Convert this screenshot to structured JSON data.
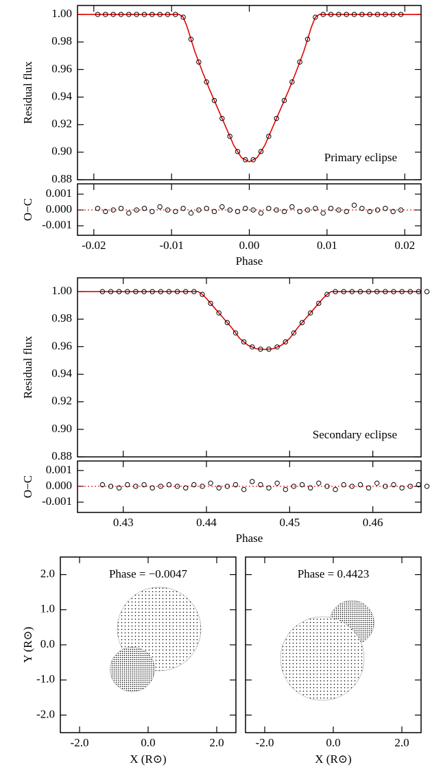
{
  "chart_data": [
    {
      "type": "light-curve",
      "ylabel": "Residual flux",
      "annotation": "Primary eclipse",
      "xlim": [
        -0.0221,
        0.0221
      ],
      "ylim": [
        0.88,
        1.0065
      ],
      "yticks": [
        {
          "value": 1,
          "label": "1.00"
        },
        0.98,
        0.96,
        0.94,
        0.92,
        {
          "value": 0.9,
          "label": "0.90"
        },
        0.88
      ],
      "x": [
        -0.0195,
        -0.0185,
        -0.0175,
        -0.0165,
        -0.0155,
        -0.0145,
        -0.0135,
        -0.0125,
        -0.0115,
        -0.0105,
        -0.0095,
        -0.0085,
        -0.0075,
        -0.0065,
        -0.0055,
        -0.0045,
        -0.0035,
        -0.0025,
        -0.0015,
        -0.0005,
        0.0005,
        0.0015,
        0.0025,
        0.0035,
        0.0045,
        0.0055,
        0.0065,
        0.0075,
        0.0085,
        0.0095,
        0.0105,
        0.0115,
        0.0125,
        0.0135,
        0.0145,
        0.0155,
        0.0165,
        0.0175,
        0.0185,
        0.0195
      ],
      "values": [
        1,
        1,
        1,
        1,
        1,
        1,
        1,
        1,
        1,
        1,
        1,
        0.998,
        0.982,
        0.9655,
        0.951,
        0.9375,
        0.9245,
        0.9115,
        0.9005,
        0.8945,
        0.8945,
        0.9005,
        0.9115,
        0.9245,
        0.9375,
        0.951,
        0.9655,
        0.982,
        0.998,
        1,
        1,
        1,
        1,
        1,
        1,
        1,
        1,
        1,
        1,
        1
      ],
      "color": "#000000",
      "model": {
        "color": "#e00000",
        "x": [
          -0.0221,
          -0.009,
          -0.0085,
          -0.008,
          -0.0075,
          -0.007,
          -0.006,
          -0.005,
          -0.004,
          -0.003,
          -0.002,
          -0.001,
          0,
          0.001,
          0.002,
          0.003,
          0.004,
          0.005,
          0.006,
          0.007,
          0.0075,
          0.008,
          0.0085,
          0.009,
          0.0221
        ],
        "values": [
          1,
          1,
          0.998,
          0.991,
          0.982,
          0.973,
          0.958,
          0.944,
          0.931,
          0.918,
          0.905,
          0.896,
          0.893,
          0.896,
          0.905,
          0.918,
          0.931,
          0.944,
          0.958,
          0.973,
          0.982,
          0.991,
          0.998,
          1,
          1
        ]
      }
    },
    {
      "type": "residual",
      "ylabel": "O−C",
      "xlabel": "Phase",
      "xlim": [
        -0.0221,
        0.0221
      ],
      "ylim": [
        -0.0016,
        0.00165
      ],
      "xticks": [
        -0.02,
        -0.01,
        {
          "value": 0,
          "label": "0.00"
        },
        0.01,
        0.02
      ],
      "yticks": [
        0.001,
        {
          "value": 0,
          "label": "0.000"
        },
        -0.001
      ],
      "x": [
        -0.0195,
        -0.0185,
        -0.0175,
        -0.0165,
        -0.0155,
        -0.0145,
        -0.0135,
        -0.0125,
        -0.0115,
        -0.0105,
        -0.0095,
        -0.0085,
        -0.0075,
        -0.0065,
        -0.0055,
        -0.0045,
        -0.0035,
        -0.0025,
        -0.0015,
        -0.0005,
        0.0005,
        0.0015,
        0.0025,
        0.0035,
        0.0045,
        0.0055,
        0.0065,
        0.0075,
        0.0085,
        0.0095,
        0.0105,
        0.0115,
        0.0125,
        0.0135,
        0.0145,
        0.0155,
        0.0165,
        0.0175,
        0.0185,
        0.0195
      ],
      "values": [
        0.0001,
        -0.0001,
        0,
        0.0001,
        -0.0002,
        0,
        0.0001,
        -0.0001,
        0.0002,
        0,
        -0.0001,
        0.0001,
        -0.0002,
        0,
        0.0001,
        -0.0001,
        0.0002,
        0,
        -0.0001,
        0.0001,
        0,
        -0.0002,
        0.0001,
        0,
        -0.0001,
        0.0002,
        -0.0001,
        0,
        0.0001,
        -0.0002,
        0.0001,
        0,
        -0.0001,
        0.0003,
        0.0001,
        -0.0001,
        0,
        0.0001,
        -0.0001,
        0
      ],
      "color": "#000000",
      "zero_color": "#e00000"
    },
    {
      "type": "light-curve",
      "ylabel": "Residual flux",
      "annotation": "Secondary eclipse",
      "xlim": [
        0.4245,
        0.4658
      ],
      "ylim": [
        0.88,
        1.01
      ],
      "yticks": [
        {
          "value": 1,
          "label": "1.00"
        },
        0.98,
        0.96,
        0.94,
        0.92,
        {
          "value": 0.9,
          "label": "0.90"
        },
        0.88
      ],
      "x": [
        0.4275,
        0.4285,
        0.4295,
        0.4305,
        0.4315,
        0.4325,
        0.4335,
        0.4345,
        0.4355,
        0.4365,
        0.4375,
        0.4385,
        0.4395,
        0.4405,
        0.4415,
        0.4425,
        0.4435,
        0.4445,
        0.4455,
        0.4465,
        0.4475,
        0.4485,
        0.4495,
        0.4505,
        0.4515,
        0.4525,
        0.4535,
        0.4545,
        0.4555,
        0.4565,
        0.4575,
        0.4585,
        0.4595,
        0.4605,
        0.4615,
        0.4625,
        0.4635,
        0.4645,
        0.4655,
        0.4665
      ],
      "values": [
        1,
        1,
        1,
        1,
        1,
        1,
        1,
        1,
        1,
        1,
        1,
        1,
        0.998,
        0.9915,
        0.9845,
        0.9775,
        0.97,
        0.9635,
        0.9598,
        0.9582,
        0.9582,
        0.9598,
        0.9635,
        0.97,
        0.9775,
        0.9845,
        0.9915,
        0.998,
        1,
        1,
        1,
        1,
        1,
        1,
        1,
        1,
        1,
        1,
        1,
        1
      ],
      "color": "#000000",
      "model": {
        "color": "#e00000",
        "x": [
          0.4245,
          0.439,
          0.4395,
          0.44,
          0.441,
          0.442,
          0.443,
          0.444,
          0.445,
          0.446,
          0.447,
          0.448,
          0.449,
          0.45,
          0.451,
          0.452,
          0.453,
          0.454,
          0.4545,
          0.455,
          0.4658
        ],
        "values": [
          1,
          1,
          0.998,
          0.995,
          0.988,
          0.981,
          0.974,
          0.966,
          0.961,
          0.9585,
          0.958,
          0.9585,
          0.961,
          0.966,
          0.974,
          0.981,
          0.988,
          0.995,
          0.998,
          1,
          1
        ]
      }
    },
    {
      "type": "residual",
      "ylabel": "O−C",
      "xlabel": "Phase",
      "xlim": [
        0.4245,
        0.4658
      ],
      "ylim": [
        -0.00165,
        0.0016
      ],
      "xticks": [
        0.43,
        0.44,
        0.45,
        0.46
      ],
      "yticks": [
        0.001,
        {
          "value": 0,
          "label": "0.000"
        },
        -0.001
      ],
      "x": [
        0.4275,
        0.4285,
        0.4295,
        0.4305,
        0.4315,
        0.4325,
        0.4335,
        0.4345,
        0.4355,
        0.4365,
        0.4375,
        0.4385,
        0.4395,
        0.4405,
        0.4415,
        0.4425,
        0.4435,
        0.4445,
        0.4455,
        0.4465,
        0.4475,
        0.4485,
        0.4495,
        0.4505,
        0.4515,
        0.4525,
        0.4535,
        0.4545,
        0.4555,
        0.4565,
        0.4575,
        0.4585,
        0.4595,
        0.4605,
        0.4615,
        0.4625,
        0.4635,
        0.4645,
        0.4655,
        0.4665
      ],
      "values": [
        0.0001,
        0,
        -0.0001,
        0.0001,
        0,
        0.0001,
        -0.0001,
        0,
        0.0001,
        0,
        -0.0001,
        0.0001,
        0,
        0.0002,
        -0.0001,
        0,
        0.0001,
        -0.0002,
        0.0003,
        0.0001,
        -0.0001,
        0.0002,
        -0.0002,
        0,
        0.0001,
        -0.0001,
        0.0002,
        0,
        -0.0002,
        0.0001,
        0,
        0.0001,
        -0.0001,
        0.0002,
        0,
        0.0001,
        -0.0001,
        0,
        0.0001,
        0
      ],
      "color": "#000000",
      "zero_color": "#e00000"
    },
    {
      "type": "binary-star",
      "title": "Phase = −0.0047",
      "xlabel": "X (R⊙)",
      "ylabel": "Y (R⊙)",
      "xlim": [
        -2.56,
        2.56
      ],
      "ylim": [
        -2.5,
        2.5
      ],
      "xticks": [
        {
          "value": -2,
          "label": "-2.0"
        },
        {
          "value": 0,
          "label": "0.0"
        },
        {
          "value": 2,
          "label": "2.0"
        }
      ],
      "yticks": [
        {
          "value": 2,
          "label": "2.0"
        },
        {
          "value": 1,
          "label": "1.0"
        },
        {
          "value": 0,
          "label": "0.0"
        },
        {
          "value": -1,
          "label": "-1.0"
        },
        {
          "value": -2,
          "label": "-2.0"
        }
      ],
      "stars": [
        {
          "x": 0.32,
          "y": 0.45,
          "radius": 1.22
        },
        {
          "x": -0.46,
          "y": -0.7,
          "radius": 0.65
        }
      ]
    },
    {
      "type": "binary-star",
      "title": "Phase = 0.4423",
      "xlabel": "X (R⊙)",
      "xlim": [
        -2.56,
        2.56
      ],
      "ylim": [
        -2.5,
        2.5
      ],
      "xticks": [
        {
          "value": -2,
          "label": "-2.0"
        },
        {
          "value": 0,
          "label": "0.0"
        },
        {
          "value": 2,
          "label": "2.0"
        }
      ],
      "stars": [
        {
          "x": 0.54,
          "y": 0.63,
          "radius": 0.65
        },
        {
          "x": -0.32,
          "y": -0.39,
          "radius": 1.22
        }
      ]
    }
  ]
}
